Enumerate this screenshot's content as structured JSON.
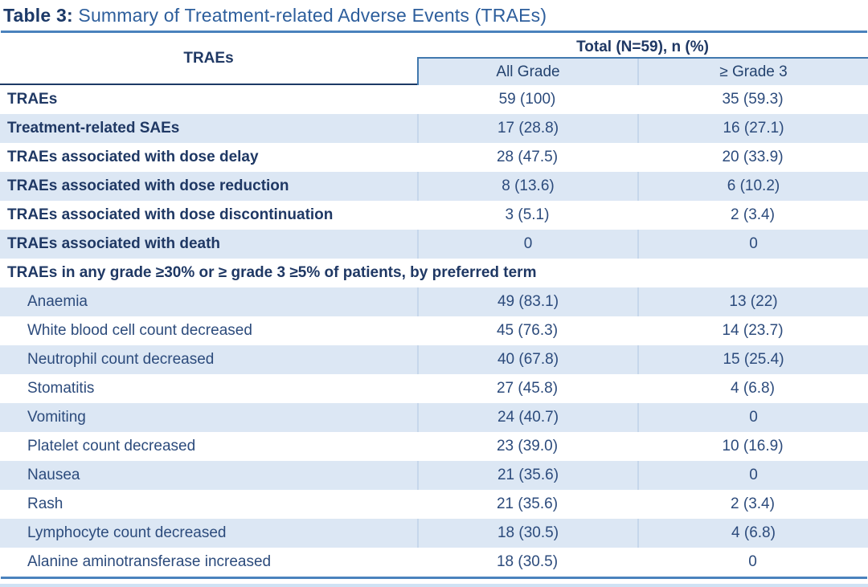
{
  "title": {
    "prefix": "Table 3:",
    "text": " Summary of Treatment-related Adverse Events (TRAEs)"
  },
  "table": {
    "col_header": "TRAEs",
    "group_header": "Total (N=59), n (%)",
    "sub_headers": [
      "All Grade",
      "≥ Grade 3"
    ],
    "rows": [
      {
        "type": "summary",
        "label": "TRAEs",
        "all_grade": "59 (100)",
        "grade3": "35 (59.3)"
      },
      {
        "type": "summary",
        "label": "Treatment-related SAEs",
        "all_grade": "17 (28.8)",
        "grade3": "16 (27.1)"
      },
      {
        "type": "summary",
        "label": "TRAEs associated with dose delay",
        "all_grade": "28 (47.5)",
        "grade3": "20 (33.9)"
      },
      {
        "type": "summary",
        "label": "TRAEs associated with dose reduction",
        "all_grade": "8 (13.6)",
        "grade3": "6 (10.2)"
      },
      {
        "type": "summary",
        "label": "TRAEs associated with dose discontinuation",
        "all_grade": "3 (5.1)",
        "grade3": "2 (3.4)"
      },
      {
        "type": "summary",
        "label": "TRAEs associated with death",
        "all_grade": "0",
        "grade3": "0"
      },
      {
        "type": "section",
        "label": "TRAEs in any grade ≥30% or ≥ grade 3 ≥5% of patients, by preferred term"
      },
      {
        "type": "term",
        "label": "Anaemia",
        "all_grade": "49 (83.1)",
        "grade3": "13 (22)"
      },
      {
        "type": "term",
        "label": "White blood cell count decreased",
        "all_grade": "45 (76.3)",
        "grade3": "14 (23.7)"
      },
      {
        "type": "term",
        "label": "Neutrophil count decreased",
        "all_grade": "40 (67.8)",
        "grade3": "15 (25.4)"
      },
      {
        "type": "term",
        "label": "Stomatitis",
        "all_grade": "27 (45.8)",
        "grade3": "4 (6.8)"
      },
      {
        "type": "term",
        "label": "Vomiting",
        "all_grade": "24 (40.7)",
        "grade3": "0"
      },
      {
        "type": "term",
        "label": "Platelet count decreased",
        "all_grade": "23 (39.0)",
        "grade3": "10 (16.9)"
      },
      {
        "type": "term",
        "label": "Nausea",
        "all_grade": "21 (35.6)",
        "grade3": "0"
      },
      {
        "type": "term",
        "label": "Rash",
        "all_grade": "21 (35.6)",
        "grade3": "2 (3.4)"
      },
      {
        "type": "term",
        "label": "Lymphocyte count decreased",
        "all_grade": "18 (30.5)",
        "grade3": "4 (6.8)"
      },
      {
        "type": "term",
        "label": "Alanine aminotransferase increased",
        "all_grade": "18 (30.5)",
        "grade3": "0"
      }
    ]
  },
  "colors": {
    "navy_text": "#1f3864",
    "body_text": "#2c4b7c",
    "title_text": "#2d5e9c",
    "row_shade": "#dce7f4",
    "steel_rule": "#4a82bd",
    "subheader_border": "#4178ae",
    "cell_divider": "#c6d7eb",
    "header_underline": "#1c3a66"
  }
}
